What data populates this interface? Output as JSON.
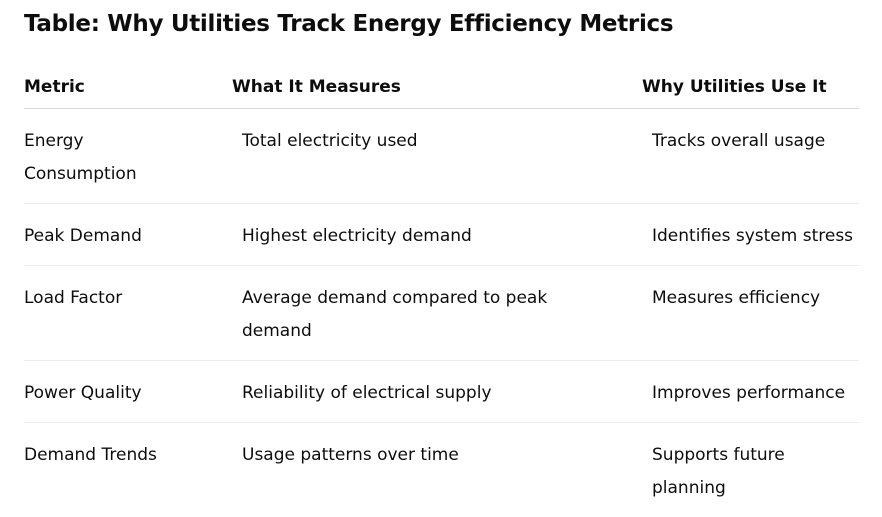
{
  "title": "Table: Why Utilities Track Energy Efficiency Metrics",
  "table": {
    "headers": [
      "Metric",
      "What It Measures",
      "Why Utilities Use It"
    ],
    "rows": [
      [
        "Energy Consumption",
        "Total electricity used",
        "Tracks overall usage"
      ],
      [
        "Peak Demand",
        "Highest electricity demand",
        "Identifies system stress"
      ],
      [
        "Load Factor",
        "Average demand compared to peak demand",
        "Measures efficiency"
      ],
      [
        "Power Quality",
        "Reliability of electrical supply",
        "Improves performance"
      ],
      [
        "Demand Trends",
        "Usage patterns over time",
        "Supports future planning"
      ]
    ]
  }
}
